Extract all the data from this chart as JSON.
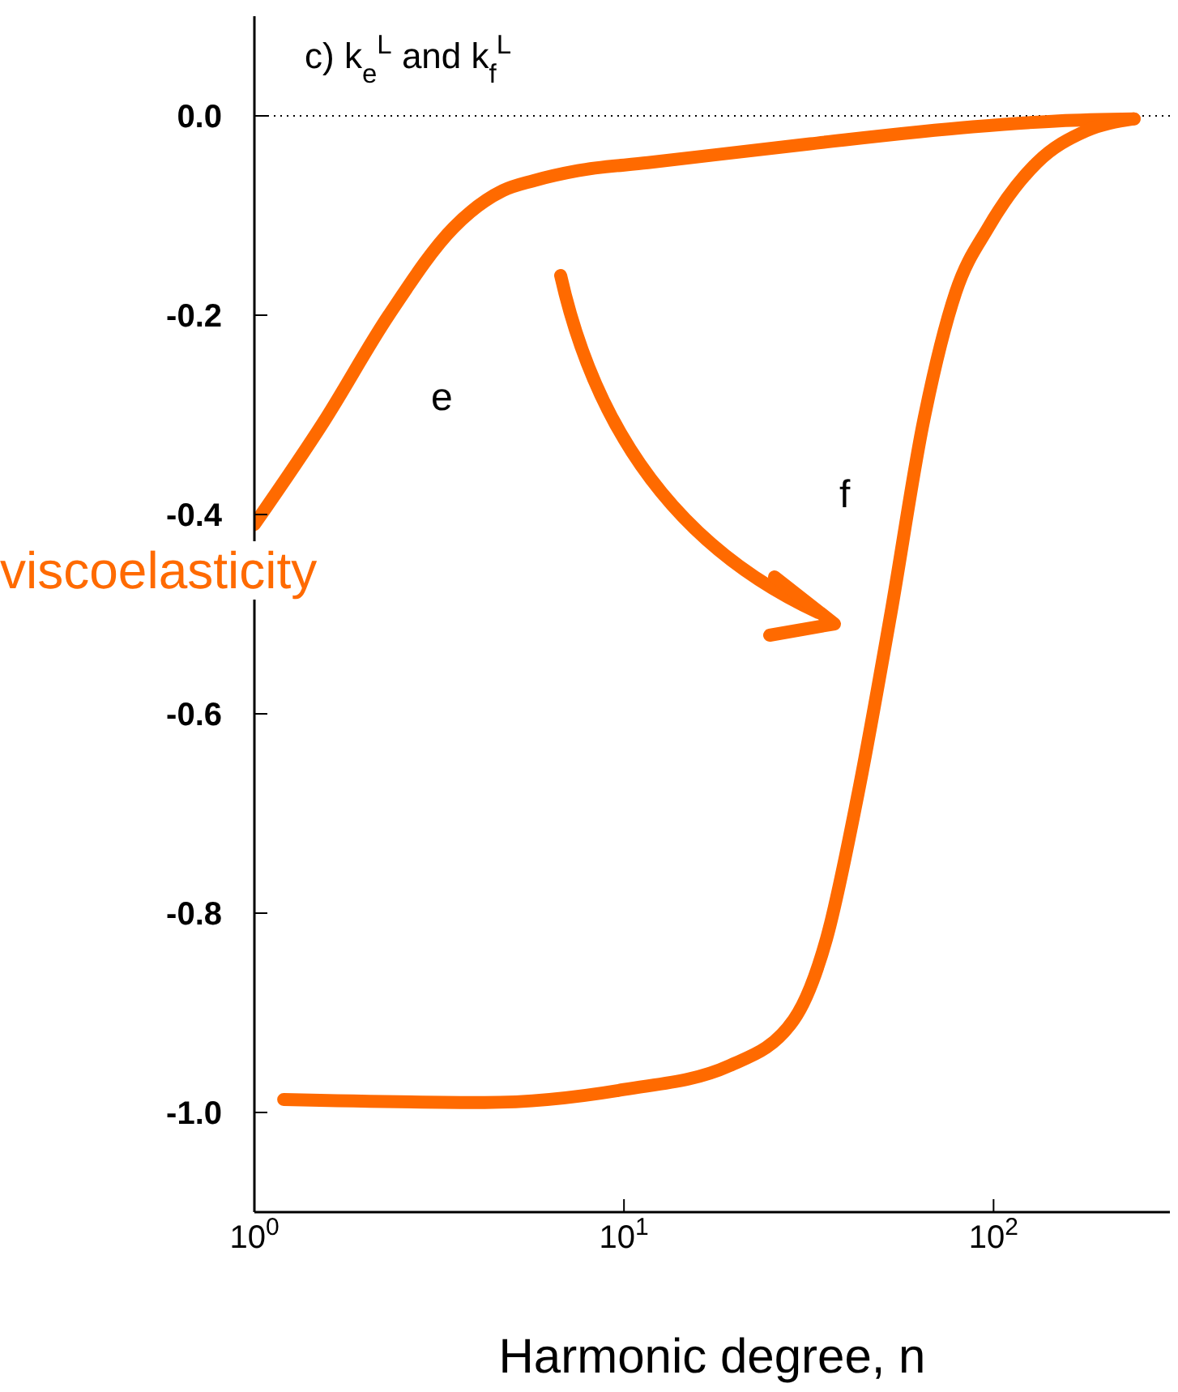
{
  "chart_data": {
    "type": "line",
    "title": "c) k$_{e}$$^{L}$ and k$_{f}$$^{L}$",
    "xlabel": "Harmonic degree, n",
    "log": "x",
    "xlim": [
      1,
      300
    ],
    "xticks": [
      {
        "value": 1,
        "label": "10$^{0}$"
      },
      {
        "value": 10,
        "label": "10$^{1}$"
      },
      {
        "value": 100,
        "label": "10$^{2}$"
      }
    ],
    "ylim": [
      -1.1,
      0.1
    ],
    "yticks": [
      {
        "value": 0,
        "label": "0.0"
      },
      {
        "value": -0.2,
        "label": "-0.2"
      },
      {
        "value": -0.4,
        "label": "-0.4"
      },
      {
        "value": -0.6,
        "label": "-0.6"
      },
      {
        "value": -0.8,
        "label": "-0.8"
      },
      {
        "value": -1,
        "label": "-1.0"
      }
    ],
    "marker": "none",
    "line_style": "solid",
    "ref_lines": [
      {
        "axis": "y",
        "value": 0,
        "color": "#000000",
        "line_style": "dotted"
      }
    ],
    "series": [
      {
        "color": "#ff6a00",
        "x": [
          1,
          1.54,
          2.31,
          3.46,
          4.7,
          5.7,
          7.5,
          11.6,
          31.9,
          87.8,
          150,
          240
        ],
        "values": [
          -0.41,
          -0.307,
          -0.2,
          -0.112,
          -0.075,
          -0.065,
          -0.055,
          -0.047,
          -0.028,
          -0.011,
          -0.005,
          -0.003
        ]
      },
      {
        "color": "#ff6a00",
        "x": [
          1.2,
          4.2,
          10,
          19.3,
          28.8,
          35.3,
          43,
          52.7,
          64.6,
          79,
          96.8,
          131,
          178,
          240
        ],
        "values": [
          -0.987,
          -0.99,
          -0.977,
          -0.953,
          -0.907,
          -0.826,
          -0.68,
          -0.5,
          -0.307,
          -0.177,
          -0.112,
          -0.047,
          -0.015,
          -0.003
        ]
      }
    ],
    "annotations": [
      "e",
      "f",
      "viscoelasticity"
    ]
  }
}
